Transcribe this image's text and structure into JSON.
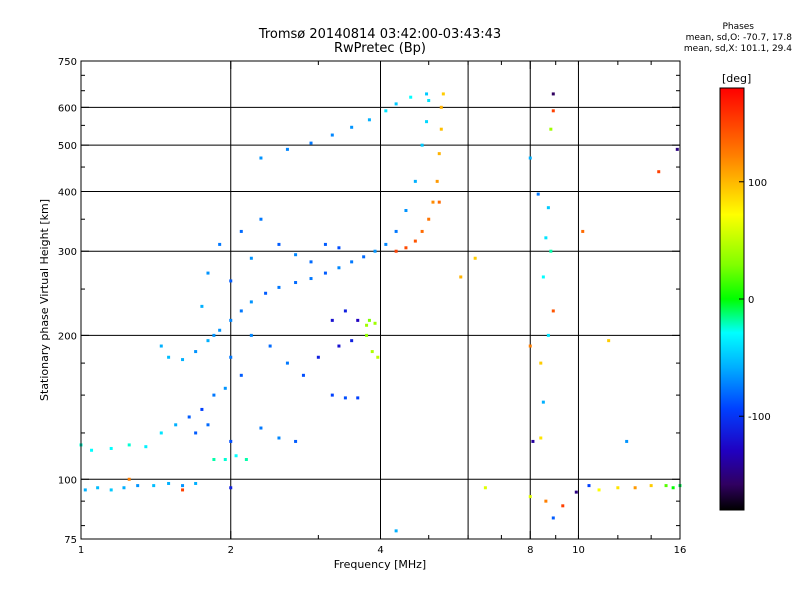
{
  "header": {
    "title": "Tromsø 20140814 03:42:00-03:43:43",
    "subtitle": "RwPretec (Bp)"
  },
  "phase_box": {
    "heading": "Phases",
    "line_o": "mean, sd,O: -70.7, 17.8",
    "line_x": "mean, sd,X: 101.1, 29.4"
  },
  "chart_data": {
    "type": "scatter",
    "xlabel": "Frequency [MHz]",
    "ylabel": "Stationary phase Virtual Height [km]",
    "xscale": "log",
    "yscale": "log",
    "xlim": [
      1,
      16
    ],
    "ylim": [
      75,
      750
    ],
    "x_ticks": [
      1,
      2,
      4,
      8,
      16
    ],
    "x_tick_labels": [
      "1",
      "2",
      "4",
      "8",
      "16"
    ],
    "x_minor_ticks": [
      3,
      5,
      6,
      7,
      9,
      10,
      12,
      14
    ],
    "x_minor_labels": [
      "",
      "",
      "",
      "",
      "",
      "10",
      "",
      ""
    ],
    "y_ticks": [
      75,
      100,
      200,
      300,
      400,
      500,
      600,
      750
    ],
    "y_tick_labels": [
      "75",
      "100",
      "200",
      "300",
      "400",
      "500",
      "600",
      "750"
    ],
    "y_minor_ticks": [
      80,
      90,
      125,
      150,
      175,
      250,
      350,
      450,
      550,
      650,
      700
    ],
    "grid_x": [
      2,
      4,
      6,
      8,
      10
    ],
    "grid_y": [
      100,
      200,
      300,
      400,
      500,
      600
    ],
    "colorbar": {
      "label": "[deg]",
      "range": [
        -180,
        180
      ],
      "ticks": [
        100,
        0,
        -100
      ],
      "tick_labels": [
        "100",
        "0",
        "-100"
      ]
    },
    "series": [
      {
        "points": [
          [
            1.02,
            95,
            -60
          ],
          [
            1.08,
            96,
            -55
          ],
          [
            1.15,
            95,
            -50
          ],
          [
            1.22,
            96,
            -60
          ],
          [
            1.3,
            97,
            -70
          ],
          [
            1.4,
            97,
            -55
          ],
          [
            1.5,
            98,
            -60
          ],
          [
            1.6,
            97,
            -70
          ],
          [
            1.7,
            98,
            -60
          ],
          [
            1.05,
            115,
            -30
          ],
          [
            1.15,
            116,
            -30
          ],
          [
            1.25,
            118,
            -25
          ],
          [
            1.35,
            117,
            -35
          ],
          [
            1.45,
            125,
            -40
          ],
          [
            1.55,
            130,
            -60
          ],
          [
            1.65,
            135,
            -90
          ],
          [
            1.75,
            140,
            -100
          ],
          [
            1.85,
            150,
            -80
          ],
          [
            1.95,
            155,
            -70
          ],
          [
            1.85,
            110,
            -20
          ],
          [
            1.95,
            110,
            -25
          ],
          [
            2.05,
            112,
            -30
          ],
          [
            2.15,
            110,
            -20
          ],
          [
            1.45,
            190,
            -60
          ],
          [
            1.5,
            180,
            -55
          ],
          [
            1.6,
            178,
            -60
          ],
          [
            1.7,
            185,
            -70
          ],
          [
            1.8,
            195,
            -60
          ],
          [
            1.9,
            205,
            -70
          ],
          [
            2.0,
            215,
            -75
          ],
          [
            2.1,
            225,
            -80
          ],
          [
            2.2,
            235,
            -70
          ],
          [
            2.35,
            245,
            -90
          ],
          [
            2.5,
            252,
            -80
          ],
          [
            2.7,
            258,
            -85
          ],
          [
            2.9,
            263,
            -80
          ],
          [
            3.1,
            270,
            -90
          ],
          [
            3.3,
            277,
            -75
          ],
          [
            3.5,
            285,
            -80
          ],
          [
            3.7,
            292,
            -85
          ],
          [
            3.9,
            300,
            -70
          ],
          [
            4.1,
            310,
            -75
          ],
          [
            4.3,
            330,
            -80
          ],
          [
            4.5,
            365,
            -70
          ],
          [
            4.7,
            420,
            -60
          ],
          [
            4.85,
            500,
            -50
          ],
          [
            4.95,
            560,
            -45
          ],
          [
            5.0,
            620,
            -40
          ],
          [
            4.95,
            640,
            -50
          ],
          [
            2.3,
            470,
            -70
          ],
          [
            2.6,
            490,
            -75
          ],
          [
            2.9,
            505,
            -80
          ],
          [
            3.2,
            525,
            -75
          ],
          [
            3.5,
            545,
            -70
          ],
          [
            3.8,
            565,
            -60
          ],
          [
            4.1,
            590,
            -40
          ],
          [
            4.3,
            610,
            -50
          ],
          [
            4.6,
            630,
            -30
          ],
          [
            1.8,
            270,
            -70
          ],
          [
            1.9,
            310,
            -80
          ],
          [
            2.0,
            260,
            -90
          ],
          [
            2.1,
            330,
            -85
          ],
          [
            2.2,
            290,
            -70
          ],
          [
            2.3,
            350,
            -80
          ],
          [
            2.5,
            310,
            -90
          ],
          [
            2.7,
            295,
            -75
          ],
          [
            2.9,
            285,
            -85
          ],
          [
            3.1,
            310,
            -90
          ],
          [
            3.3,
            305,
            -95
          ],
          [
            1.75,
            230,
            -60
          ],
          [
            1.85,
            200,
            -70
          ],
          [
            2.0,
            180,
            -80
          ],
          [
            2.1,
            165,
            -90
          ],
          [
            2.2,
            200,
            -75
          ],
          [
            2.4,
            190,
            -85
          ],
          [
            2.6,
            175,
            -80
          ],
          [
            2.8,
            165,
            -95
          ],
          [
            3.0,
            180,
            -110
          ],
          [
            3.2,
            215,
            -115
          ],
          [
            3.4,
            225,
            -110
          ],
          [
            3.6,
            215,
            -120
          ],
          [
            3.3,
            190,
            -115
          ],
          [
            3.5,
            195,
            -110
          ],
          [
            3.2,
            150,
            -100
          ],
          [
            3.4,
            148,
            -95
          ],
          [
            3.6,
            148,
            -100
          ],
          [
            1.7,
            125,
            -90
          ],
          [
            1.8,
            130,
            -85
          ],
          [
            2.0,
            120,
            -95
          ],
          [
            2.3,
            128,
            -80
          ],
          [
            2.5,
            122,
            -75
          ],
          [
            2.7,
            120,
            -90
          ],
          [
            3.75,
            210,
            40
          ],
          [
            3.8,
            215,
            30
          ],
          [
            3.9,
            212,
            40
          ],
          [
            3.85,
            185,
            45
          ],
          [
            3.95,
            180,
            50
          ],
          [
            3.75,
            200,
            35
          ],
          [
            4.3,
            300,
            150
          ],
          [
            4.5,
            305,
            145
          ],
          [
            4.7,
            315,
            140
          ],
          [
            4.85,
            330,
            130
          ],
          [
            5.0,
            350,
            125
          ],
          [
            5.1,
            380,
            115
          ],
          [
            5.2,
            420,
            110
          ],
          [
            5.25,
            480,
            100
          ],
          [
            5.3,
            540,
            95
          ],
          [
            5.3,
            600,
            100
          ],
          [
            5.35,
            640,
            90
          ],
          [
            5.25,
            380,
            130
          ],
          [
            1.25,
            100,
            120
          ],
          [
            1.6,
            95,
            150
          ],
          [
            1.0,
            118,
            -25
          ],
          [
            8.9,
            640,
            -150
          ],
          [
            8.9,
            590,
            150
          ],
          [
            8.8,
            540,
            40
          ],
          [
            8.0,
            470,
            -60
          ],
          [
            8.3,
            395,
            -80
          ],
          [
            8.7,
            370,
            -50
          ],
          [
            8.6,
            320,
            -40
          ],
          [
            8.8,
            300,
            -20
          ],
          [
            8.5,
            265,
            -30
          ],
          [
            8.9,
            225,
            140
          ],
          [
            8.7,
            200,
            -40
          ],
          [
            8.0,
            190,
            120
          ],
          [
            8.4,
            175,
            90
          ],
          [
            8.5,
            145,
            -60
          ],
          [
            8.4,
            122,
            80
          ],
          [
            8.1,
            120,
            -130
          ],
          [
            8.0,
            92,
            60
          ],
          [
            8.6,
            90,
            120
          ],
          [
            8.9,
            83,
            -90
          ],
          [
            9.3,
            88,
            150
          ],
          [
            9.9,
            94,
            -140
          ],
          [
            10.5,
            97,
            -100
          ],
          [
            11.0,
            95,
            70
          ],
          [
            12.0,
            96,
            80
          ],
          [
            13.0,
            96,
            110
          ],
          [
            14.0,
            97,
            90
          ],
          [
            15.0,
            97,
            20
          ],
          [
            15.5,
            96,
            0
          ],
          [
            16.0,
            97,
            -10
          ],
          [
            12.5,
            120,
            -70
          ],
          [
            11.5,
            195,
            90
          ],
          [
            10.2,
            330,
            130
          ],
          [
            14.5,
            440,
            150
          ],
          [
            15.8,
            490,
            -140
          ],
          [
            6.2,
            290,
            90
          ],
          [
            5.8,
            265,
            100
          ],
          [
            2.0,
            96,
            -110
          ],
          [
            4.3,
            78,
            -60
          ],
          [
            6.5,
            96,
            60
          ]
        ]
      }
    ]
  }
}
